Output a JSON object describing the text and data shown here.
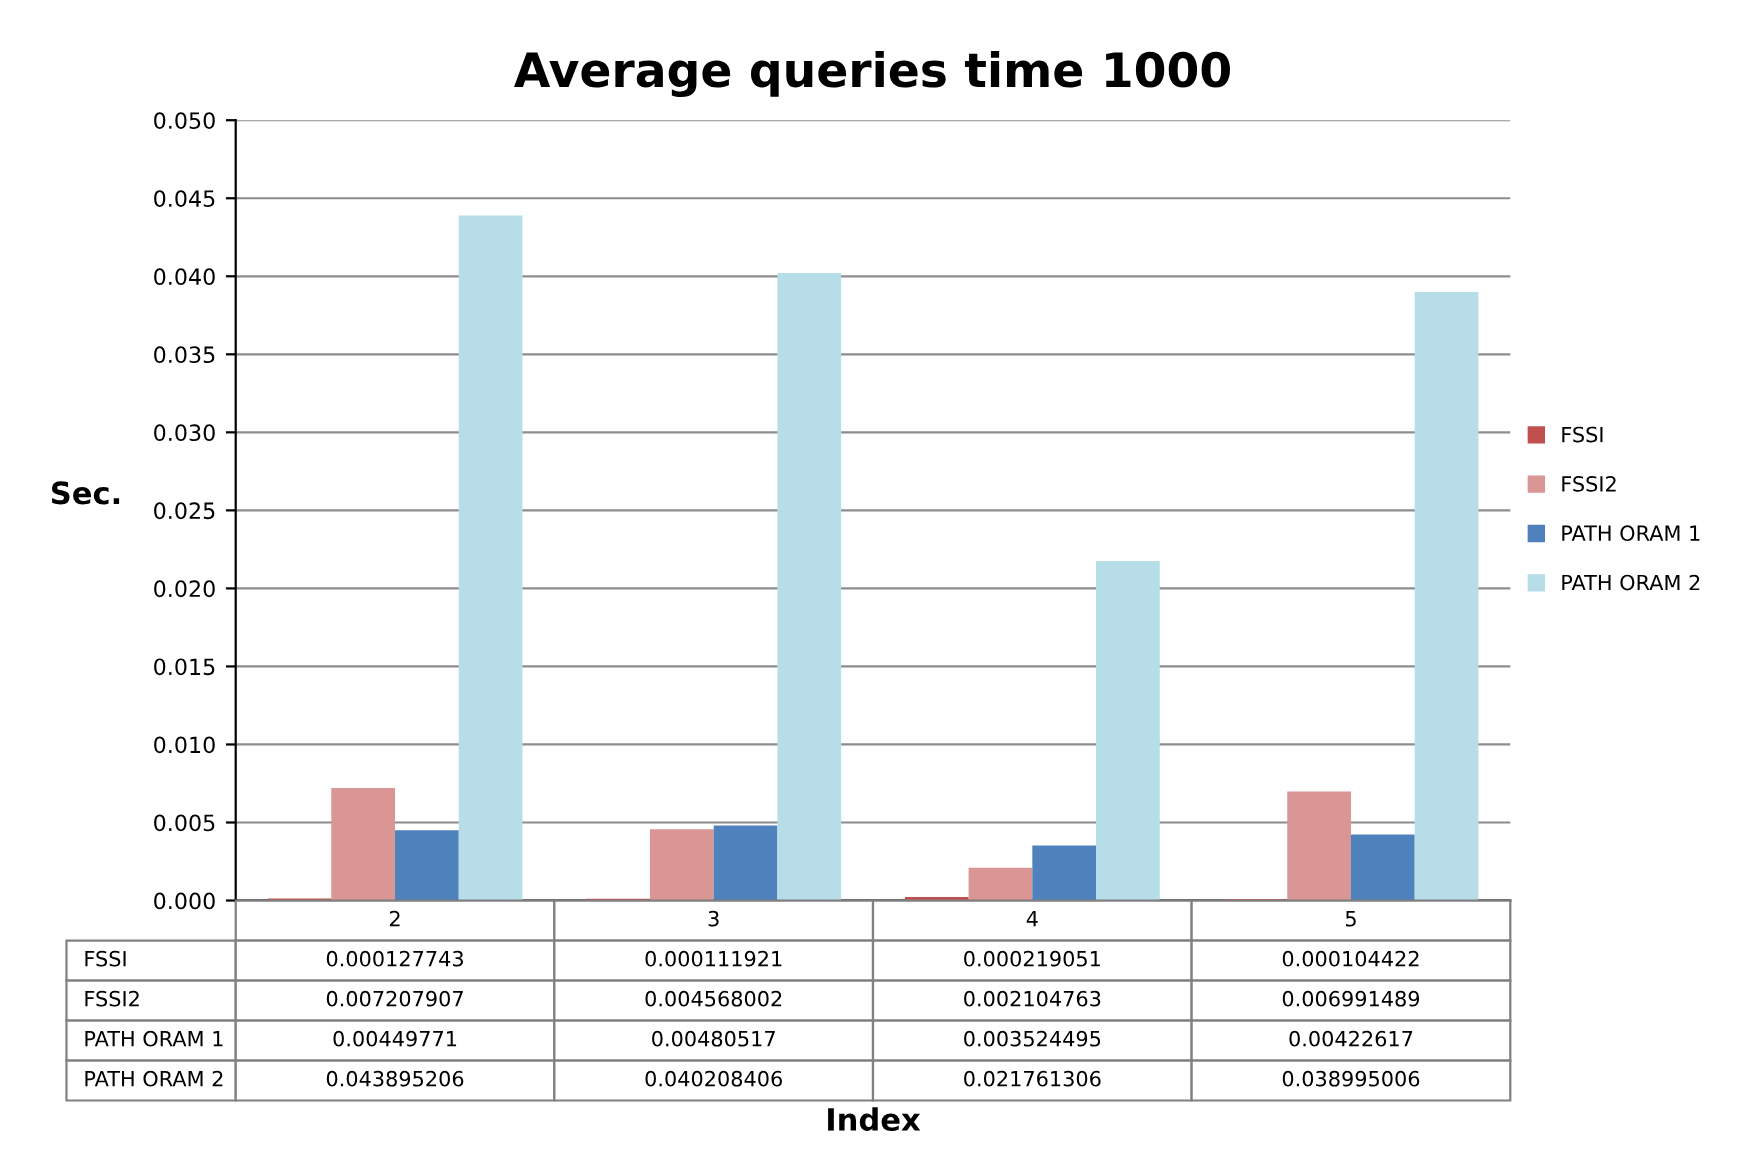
{
  "chart_data": {
    "type": "bar",
    "title": "Average queries time 1000",
    "annotations": [
      "Index"
    ],
    "ylabel": "Sec.",
    "categories": [
      "2",
      "3",
      "4",
      "5"
    ],
    "series": [
      {
        "name": "FSSI",
        "color": "#c0504d",
        "values": [
          0.000127743,
          0.000111921,
          0.000219051,
          0.000104422
        ]
      },
      {
        "name": "FSSI2",
        "color": "#d99694",
        "values": [
          0.007207907,
          0.004568002,
          0.002104763,
          0.006991489
        ]
      },
      {
        "name": "PATH ORAM 1",
        "color": "#4f81bd",
        "values": [
          0.00449771,
          0.00480517,
          0.003524495,
          0.00422617
        ]
      },
      {
        "name": "PATH ORAM 2",
        "color": "#b7dee8",
        "values": [
          0.043895206,
          0.040208406,
          0.021761306,
          0.038995006
        ]
      }
    ],
    "ylim": [
      0,
      0.05
    ],
    "yticks": [
      {
        "value": 0,
        "label": "0.000"
      },
      {
        "value": 0.005,
        "label": "0.005"
      },
      {
        "value": 0.01,
        "label": "0.010"
      },
      {
        "value": 0.015,
        "label": "0.015"
      },
      {
        "value": 0.02,
        "label": "0.020"
      },
      {
        "value": 0.025,
        "label": "0.025"
      },
      {
        "value": 0.03,
        "label": "0.030"
      },
      {
        "value": 0.035,
        "label": "0.035"
      },
      {
        "value": 0.04,
        "label": "0.040"
      },
      {
        "value": 0.045,
        "label": "0.045"
      },
      {
        "value": 0.05,
        "label": "0.050"
      }
    ],
    "grid": "y",
    "legend": "right",
    "data_labels": true
  }
}
